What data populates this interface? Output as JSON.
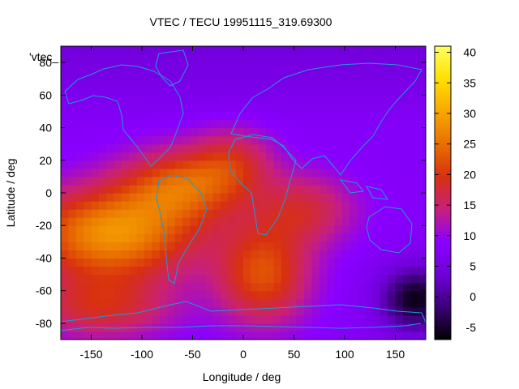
{
  "chart_data": {
    "type": "heatmap",
    "title": "VTEC / TECU 19951115_319.69300",
    "xlabel": "Longitude / deg",
    "ylabel": "Latitude / deg",
    "key_label": "'vtec_",
    "xlim": [
      -180,
      180
    ],
    "ylim": [
      -90,
      90
    ],
    "x_ticks": [
      -150,
      -100,
      -50,
      0,
      50,
      100,
      150
    ],
    "y_ticks": [
      -80,
      -60,
      -40,
      -20,
      0,
      20,
      40,
      60,
      80
    ],
    "colorbar": {
      "range": [
        -7,
        41
      ],
      "ticks": [
        -5,
        0,
        5,
        10,
        15,
        20,
        25,
        30,
        35,
        40
      ],
      "palette": [
        "#000000",
        "#3c0078",
        "#7000d8",
        "#8a00ff",
        "#c8207a",
        "#d83010",
        "#e87000",
        "#f8a800",
        "#ffe000",
        "#ffff60"
      ]
    },
    "grid": {
      "lon_step": 7.5,
      "lat_step": 5
    },
    "field_model": {
      "background": 8,
      "blobs": [
        {
          "lon": -130,
          "lat": -25,
          "amp": 20,
          "sx": 85,
          "sy": 28
        },
        {
          "lon": -60,
          "lat": 5,
          "amp": 14,
          "sx": 60,
          "sy": 22
        },
        {
          "lon": 20,
          "lat": -50,
          "amp": 14,
          "sx": 45,
          "sy": 30
        },
        {
          "lon": -10,
          "lat": 20,
          "amp": 8,
          "sx": 40,
          "sy": 20
        },
        {
          "lon": 60,
          "lat": -10,
          "amp": 9,
          "sx": 50,
          "sy": 22
        },
        {
          "lon": -140,
          "lat": -70,
          "amp": 10,
          "sx": 70,
          "sy": 20
        }
      ],
      "sink": {
        "lon": 170,
        "lat": -65,
        "amp": 14,
        "sx": 35,
        "sy": 20
      }
    },
    "coastline_color": "#1e9ad8"
  }
}
